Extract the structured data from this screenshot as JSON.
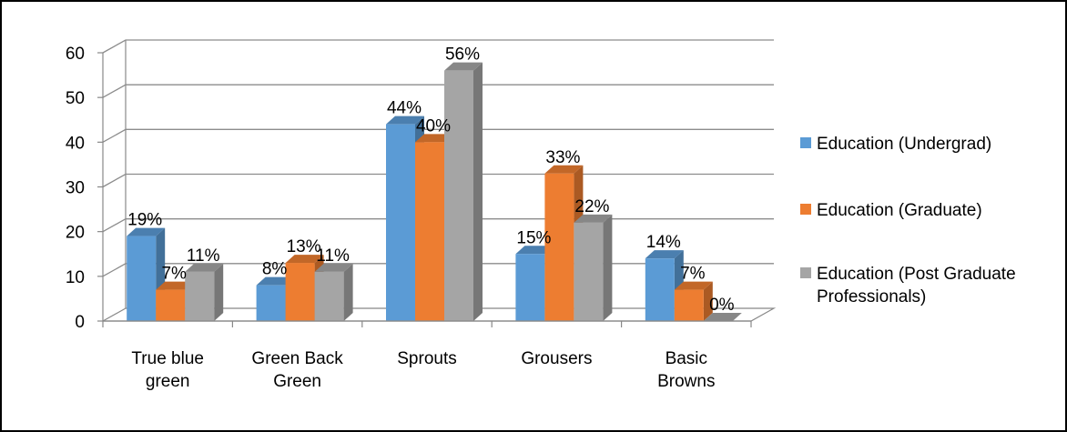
{
  "chart_data": {
    "type": "bar",
    "title": "",
    "xlabel": "",
    "ylabel": "",
    "ylim": [
      0,
      60
    ],
    "yticks": [
      0,
      10,
      20,
      30,
      40,
      50,
      60
    ],
    "grid": true,
    "legend_position": "right",
    "style": "3d-clustered-column",
    "categories": [
      [
        "True blue",
        "green"
      ],
      [
        "Green Back",
        "Green"
      ],
      [
        "Sprouts"
      ],
      [
        "Grousers"
      ],
      [
        "Basic",
        "Browns"
      ]
    ],
    "series": [
      {
        "name": [
          "Education (Undergrad)"
        ],
        "color": "#5B9BD5",
        "values": [
          19,
          8,
          44,
          15,
          14
        ],
        "labels": [
          "19%",
          "8%",
          "44%",
          "15%",
          "14%"
        ]
      },
      {
        "name": [
          "Education (Graduate)"
        ],
        "color": "#ED7D31",
        "values": [
          7,
          13,
          40,
          33,
          7
        ],
        "labels": [
          "7%",
          "13%",
          "40%",
          "33%",
          "7%"
        ]
      },
      {
        "name": [
          "Education (Post Graduate",
          "Professionals)"
        ],
        "color": "#A5A5A5",
        "values": [
          11,
          11,
          56,
          22,
          0
        ],
        "labels": [
          "11%",
          "11%",
          "56%",
          "22%",
          "0%"
        ]
      }
    ]
  }
}
